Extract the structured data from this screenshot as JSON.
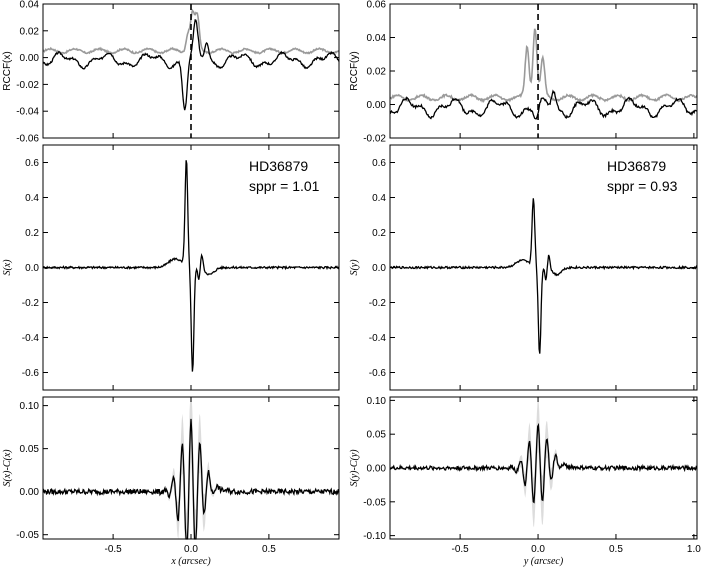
{
  "chart_data": [
    {
      "type": "line",
      "id": "x_rccf",
      "ylabel": "RCCF(x)",
      "ylim": [
        -0.06,
        0.04
      ],
      "yticks": [
        "-0.06",
        "-0.04",
        "-0.02",
        "0.00",
        "0.02",
        "0.04"
      ],
      "xlim": [
        -0.95,
        0.95
      ],
      "xticks": [
        "-0.5",
        "0.0",
        "0.5"
      ],
      "show_xticklabels": false,
      "vline_x": 0.0,
      "series": [
        {
          "color": "#9a9a9a",
          "kind": "rccf_gray",
          "peaks": [
            [
              -0.02,
              0.018
            ],
            [
              0.01,
              0.032
            ],
            [
              0.04,
              0.03
            ]
          ],
          "baseline": 0.005
        },
        {
          "color": "#000000",
          "kind": "rccf_black",
          "dip": [
            -0.04,
            -0.038
          ],
          "peaks": [
            [
              0.03,
              0.022
            ],
            [
              0.1,
              0.012
            ]
          ],
          "baseline": -0.002
        }
      ]
    },
    {
      "type": "line",
      "id": "x_S",
      "ylabel": "S(x)",
      "ylim": [
        -0.7,
        0.7
      ],
      "yticks": [
        "-0.6",
        "-0.4",
        "-0.2",
        "0.0",
        "0.2",
        "0.4",
        "0.6"
      ],
      "xlim": [
        -0.95,
        0.95
      ],
      "xticks": [
        "-0.5",
        "0.0",
        "0.5"
      ],
      "show_xticklabels": false,
      "annotation": {
        "line1": "HD36879",
        "line2": "sppr = 1.01"
      },
      "series": [
        {
          "color": "#000000",
          "kind": "S",
          "peak": 0.61,
          "trough": -0.6,
          "bump": 0.05
        }
      ]
    },
    {
      "type": "line",
      "id": "x_SC",
      "ylabel": "S(x)-C(x)",
      "ylim": [
        -0.055,
        0.11
      ],
      "yticks": [
        "-0.05",
        "0.00",
        "0.05",
        "0.10"
      ],
      "xlim": [
        -0.95,
        0.95
      ],
      "xticks": [
        "-0.5",
        "0.0",
        "0.5"
      ],
      "show_xticklabels": true,
      "xlabel": "x (arcsec)",
      "series": [
        {
          "color": "#000000",
          "kind": "SC",
          "amp": 0.08,
          "band": 0.05
        }
      ]
    },
    {
      "type": "line",
      "id": "y_rccf",
      "ylabel": "RCCF(y)",
      "ylim": [
        -0.02,
        0.06
      ],
      "yticks": [
        "-0.02",
        "0.00",
        "0.02",
        "0.04",
        "0.06"
      ],
      "xlim": [
        -0.95,
        1.02
      ],
      "xticks": [
        "-0.5",
        "0.0",
        "0.5",
        "1.0"
      ],
      "show_xticklabels": false,
      "vline_x": 0.0,
      "series": [
        {
          "color": "#9a9a9a",
          "kind": "rccf_gray",
          "peaks": [
            [
              -0.07,
              0.035
            ],
            [
              -0.02,
              0.046
            ],
            [
              0.03,
              0.027
            ]
          ],
          "baseline": 0.004
        },
        {
          "color": "#000000",
          "kind": "rccf_black",
          "dip": [
            -0.01,
            -0.01
          ],
          "peaks": [
            [
              0.1,
              0.009
            ]
          ],
          "baseline": -0.002
        }
      ]
    },
    {
      "type": "line",
      "id": "y_S",
      "ylabel": "S(y)",
      "ylim": [
        -0.7,
        0.7
      ],
      "yticks": [
        "-0.6",
        "-0.4",
        "-0.2",
        "0.0",
        "0.2",
        "0.4",
        "0.6"
      ],
      "xlim": [
        -0.95,
        1.02
      ],
      "xticks": [
        "-0.5",
        "0.0",
        "0.5",
        "1.0"
      ],
      "show_xticklabels": false,
      "annotation": {
        "line1": "HD36879",
        "line2": "sppr = 0.93"
      },
      "series": [
        {
          "color": "#000000",
          "kind": "S",
          "peak": 0.39,
          "trough": -0.5,
          "bump": 0.04
        }
      ]
    },
    {
      "type": "line",
      "id": "y_SC",
      "ylabel": "S(y)-C(y)",
      "ylim": [
        -0.105,
        0.105
      ],
      "yticks": [
        "-0.10",
        "-0.05",
        "0.00",
        "0.05",
        "0.10"
      ],
      "xlim": [
        -0.95,
        1.02
      ],
      "xticks": [
        "-0.5",
        "0.0",
        "0.5",
        "1.0"
      ],
      "show_xticklabels": true,
      "xlabel": "y (arcsec)",
      "series": [
        {
          "color": "#000000",
          "kind": "SC",
          "amp": 0.06,
          "band": 0.04
        }
      ]
    }
  ]
}
